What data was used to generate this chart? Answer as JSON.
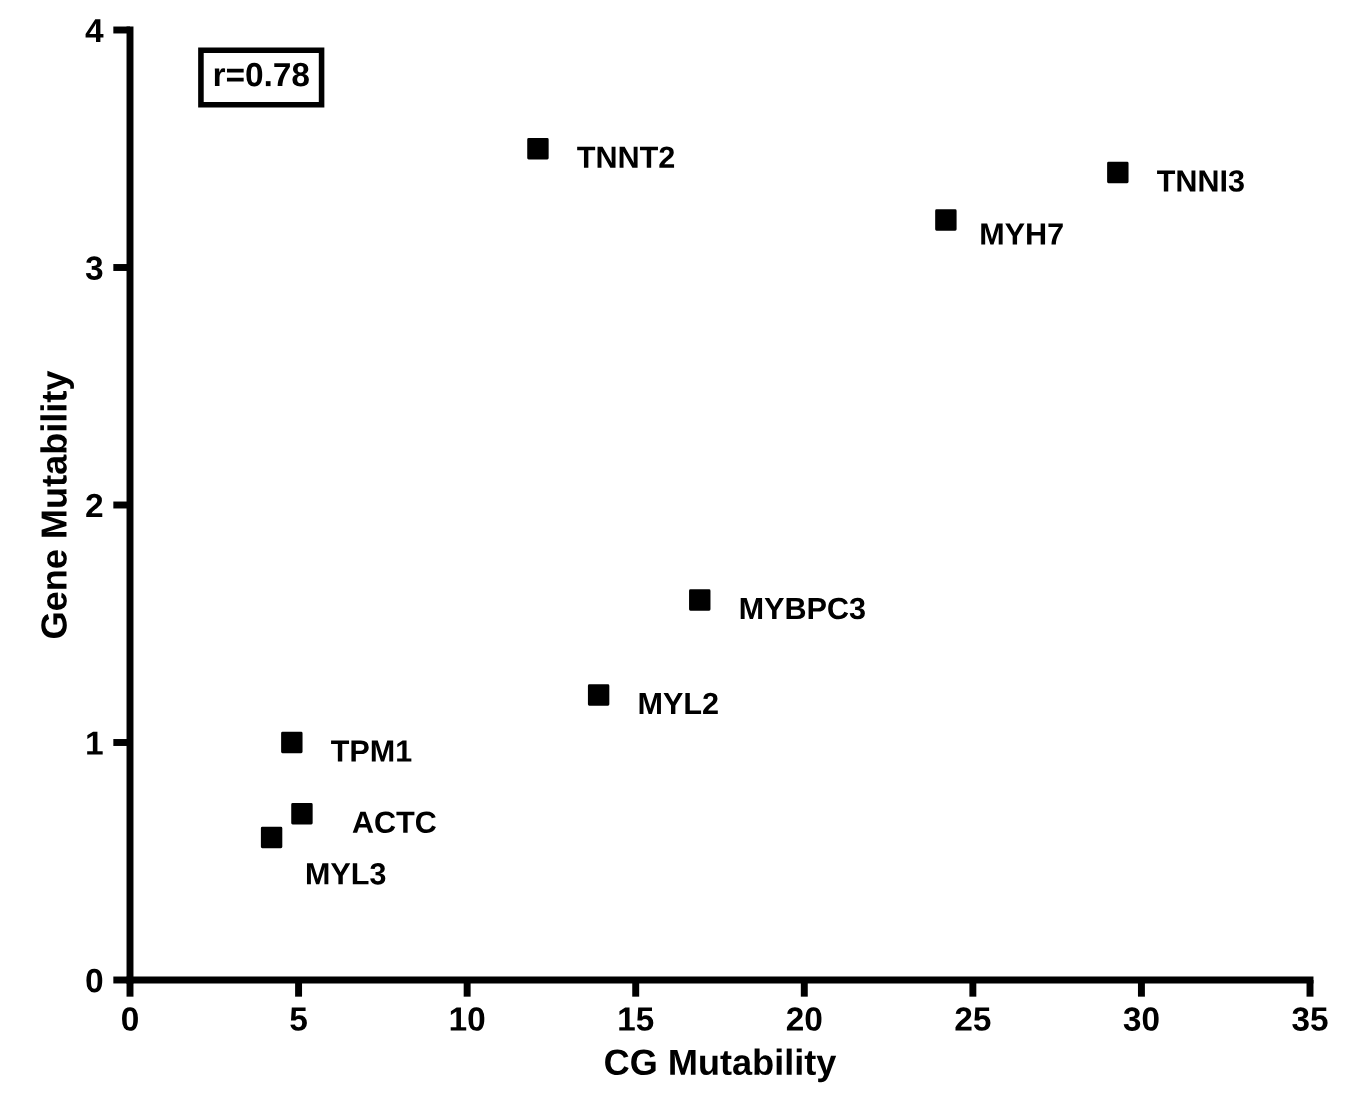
{
  "chart_data": {
    "type": "scatter",
    "xlabel": "CG Mutability",
    "ylabel": "Gene Mutability",
    "x": [
      12.1,
      24.2,
      29.3,
      16.9,
      13.9,
      4.8,
      5.1,
      4.2
    ],
    "values": [
      3.5,
      3.2,
      3.4,
      1.6,
      1.2,
      1.0,
      0.7,
      0.6
    ],
    "color": "#000000",
    "marker": "square",
    "annotations": [
      {
        "text": "TNNT2",
        "x": 12.1,
        "y": 3.5
      },
      {
        "text": "MYH7",
        "x": 24.2,
        "y": 3.2
      },
      {
        "text": "TNNI3",
        "x": 29.3,
        "y": 3.4
      },
      {
        "text": "MYBPC3",
        "x": 16.9,
        "y": 1.6
      },
      {
        "text": "MYL2",
        "x": 13.9,
        "y": 1.2
      },
      {
        "text": "TPM1",
        "x": 4.8,
        "y": 1.0
      },
      {
        "text": "ACTC",
        "x": 5.1,
        "y": 0.7
      },
      {
        "text": "MYL3",
        "x": 4.2,
        "y": 0.6
      },
      "r=0.78"
    ],
    "xlim": [
      0,
      35
    ],
    "xticks": [
      0,
      5,
      10,
      15,
      20,
      25,
      30,
      35
    ],
    "ylim": [
      0,
      4
    ],
    "yticks": [
      0,
      1,
      2,
      3,
      4
    ],
    "grid": false,
    "legend": false
  }
}
